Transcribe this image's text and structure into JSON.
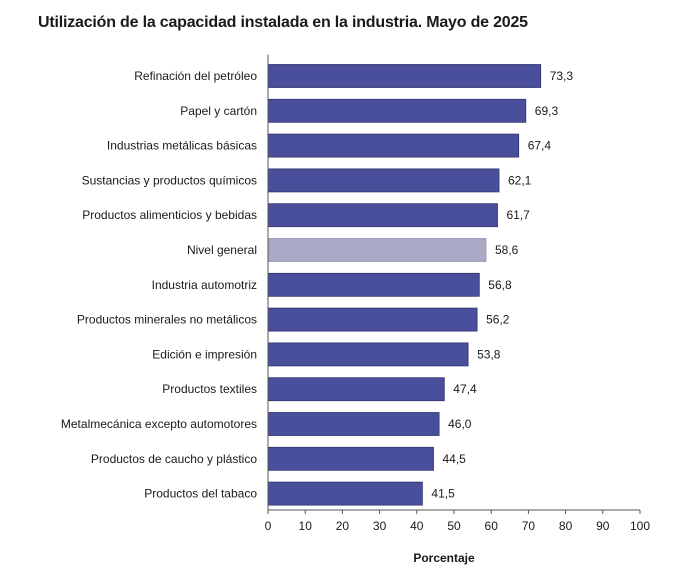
{
  "chart_data": {
    "type": "bar",
    "orientation": "horizontal",
    "title": "Utilización de la capacidad instalada en la industria. Mayo de 2025",
    "xlabel": "Porcentaje",
    "ylabel": "",
    "xlim": [
      0,
      100
    ],
    "ticks": [
      0,
      10,
      20,
      30,
      40,
      50,
      60,
      70,
      80,
      90,
      100
    ],
    "categories": [
      "Refinación del petróleo",
      "Papel y cartón",
      "Industrias metálicas básicas",
      "Sustancias y productos químicos",
      "Productos alimenticios y bebidas",
      "Nivel general",
      "Industria automotriz",
      "Productos minerales no metálicos",
      "Edición e impresión",
      "Productos textiles",
      "Metalmecánica excepto automotores",
      "Productos de caucho y plástico",
      "Productos del tabaco"
    ],
    "values": [
      73.3,
      69.3,
      67.4,
      62.1,
      61.7,
      58.6,
      56.8,
      56.2,
      53.8,
      47.4,
      46.0,
      44.5,
      41.5
    ],
    "value_labels": [
      "73,3",
      "69,3",
      "67,4",
      "62,1",
      "61,7",
      "58,6",
      "56,8",
      "56,2",
      "53,8",
      "47,4",
      "46,0",
      "44,5",
      "41,5"
    ],
    "highlight_category": "Nivel general",
    "grid": false,
    "legend": "none",
    "colors": {
      "bar": "#4a4f9c",
      "bar_highlight": "#a9a9c6",
      "bar_edge": "#2f336e",
      "axis": "#555555"
    }
  }
}
